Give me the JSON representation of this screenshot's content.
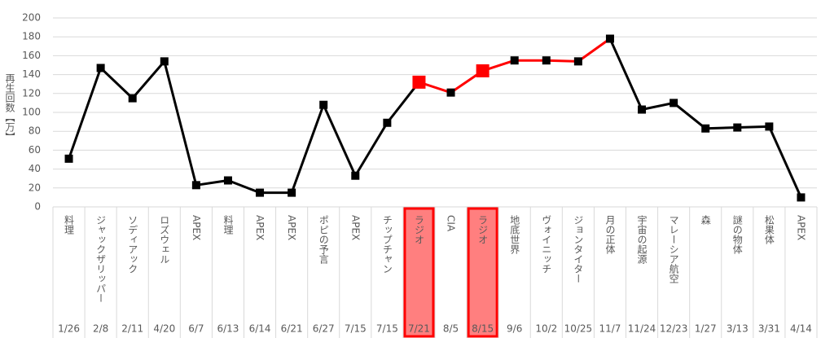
{
  "chart_data": {
    "type": "line",
    "y_label": "再生回数【万】",
    "categories": [
      "料理",
      "ジャックザリッパー",
      "ソディアック",
      "ロズウェル",
      "APEX",
      "料理",
      "APEX",
      "APEX",
      "ポピの予言",
      "APEX",
      "チップチャン",
      "ラジオ",
      "CIA",
      "ラジオ",
      "地底世界",
      "ヴォイニッチ",
      "ジョンタイター",
      "月の正体",
      "宇宙の起源",
      "マレーシア航空",
      "森",
      "謎の物体",
      "松果体",
      "APEX"
    ],
    "dates": [
      "1/26",
      "2/8",
      "2/11",
      "4/20",
      "6/7",
      "6/13",
      "6/14",
      "6/21",
      "6/27",
      "7/15",
      "7/15",
      "7/21",
      "8/5",
      "8/15",
      "9/6",
      "10/2",
      "10/25",
      "11/7",
      "11/24",
      "12/23",
      "1/27",
      "3/13",
      "3/31",
      "4/14"
    ],
    "values": [
      51,
      147,
      115,
      154,
      23,
      28,
      15,
      15,
      108,
      33,
      89,
      132,
      121,
      144,
      155,
      155,
      154,
      178,
      103,
      110,
      83,
      84,
      85,
      10
    ],
    "color": "#000000",
    "highlight_color": "#ff0000",
    "highlight_fill": "#ff7f7f",
    "highlighted": [
      false,
      false,
      false,
      false,
      false,
      false,
      false,
      false,
      false,
      false,
      false,
      true,
      false,
      true,
      false,
      false,
      false,
      false,
      false,
      false,
      false,
      false,
      false,
      false
    ],
    "segment_colors": [
      "#000000",
      "#000000",
      "#000000",
      "#000000",
      "#000000",
      "#000000",
      "#000000",
      "#000000",
      "#000000",
      "#000000",
      "#000000",
      "#ff0000",
      "#ff0000",
      "#ff0000",
      "#ff0000",
      "#ff0000",
      "#ff0000",
      "#000000",
      "#000000",
      "#000000",
      "#000000",
      "#000000",
      "#000000"
    ],
    "ylim": [
      0,
      200
    ],
    "yticks": [
      0,
      20,
      40,
      60,
      80,
      100,
      120,
      140,
      160,
      180,
      200
    ],
    "grid": true
  }
}
